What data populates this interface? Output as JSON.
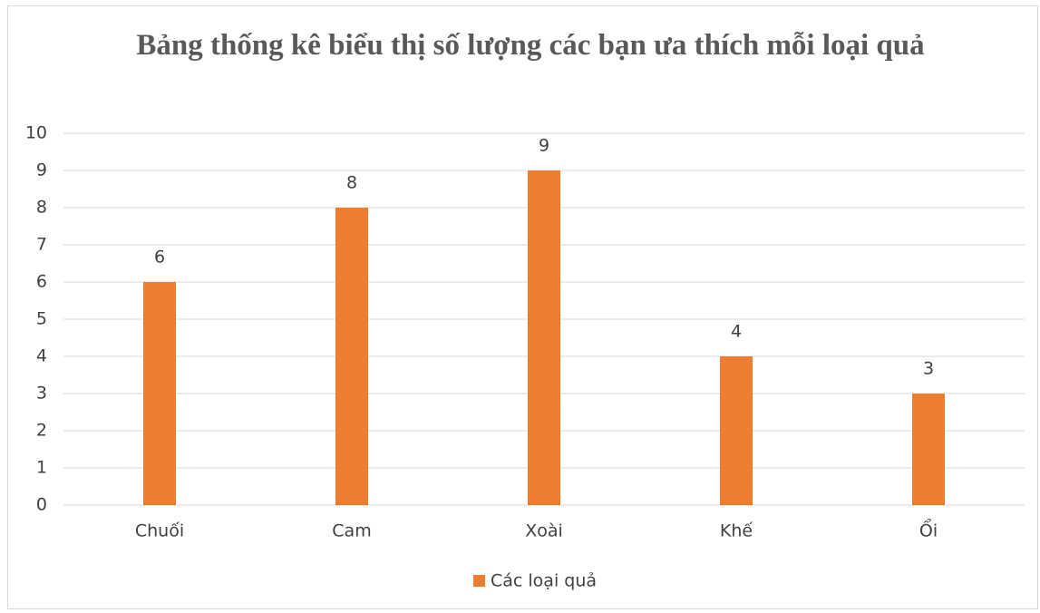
{
  "chart_data": {
    "type": "bar",
    "title": "Bảng thống kê biểu thị số lượng các bạn ưa thích mỗi loại quả",
    "categories": [
      "Chuối",
      "Cam",
      "Xoài",
      "Khế",
      "Ổi"
    ],
    "series": [
      {
        "name": "Các loại quả",
        "color": "#ed7d31",
        "values": [
          6,
          8,
          9,
          4,
          3
        ]
      }
    ],
    "ylim": [
      0,
      10
    ],
    "yticks": [
      0,
      1,
      2,
      3,
      4,
      5,
      6,
      7,
      8,
      9,
      10
    ],
    "grid": true,
    "legend": "bottom"
  }
}
